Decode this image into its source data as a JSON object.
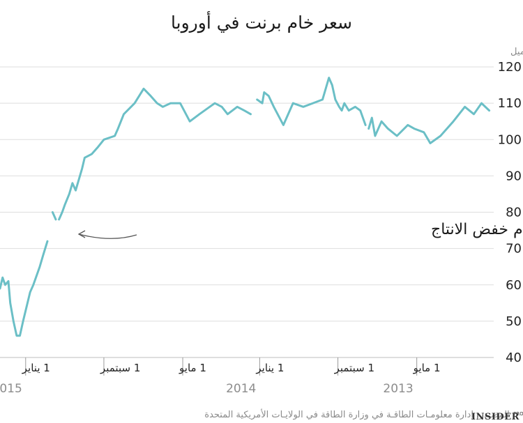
{
  "chart_data": {
    "type": "line",
    "title": "سعر خام برنت في أوروبا",
    "unit_label": "دولار/ برميل",
    "ylim": [
      40,
      120
    ],
    "yticks": [
      40,
      50,
      60,
      70,
      80,
      90,
      100,
      110,
      120
    ],
    "x_direction": "right-to-left",
    "xlim": [
      "2013-01-01",
      "2015-02-10"
    ],
    "xticks": [
      {
        "date": "2013-05-01",
        "label": "1 مايو"
      },
      {
        "date": "2013-09-01",
        "label": "1 سبتمبر"
      },
      {
        "date": "2014-01-01",
        "label": "1 يناير"
      },
      {
        "date": "2014-05-01",
        "label": "1 مايو"
      },
      {
        "date": "2014-09-01",
        "label": "1 سبتمبر"
      },
      {
        "date": "2015-01-01",
        "label": "1 يناير"
      }
    ],
    "year_labels": [
      {
        "date": "2013-05-01",
        "label": "2013"
      },
      {
        "date": "2014-01-01",
        "label": "2014"
      },
      {
        "date": "2015-01-01",
        "label": "2015"
      }
    ],
    "grid": true,
    "series": [
      {
        "segments": [
          [
            [
              "2013-01-08",
              108
            ],
            [
              "2013-01-20",
              110
            ],
            [
              "2013-02-01",
              107
            ],
            [
              "2013-02-15",
              109
            ],
            [
              "2013-03-05",
              105
            ],
            [
              "2013-03-25",
              101
            ],
            [
              "2013-04-10",
              99
            ],
            [
              "2013-04-20",
              102
            ],
            [
              "2013-05-05",
              103
            ],
            [
              "2013-05-15",
              104
            ],
            [
              "2013-06-01",
              101
            ],
            [
              "2013-06-15",
              103
            ],
            [
              "2013-06-25",
              105
            ],
            [
              "2013-07-05",
              101
            ],
            [
              "2013-07-10",
              106
            ],
            [
              "2013-07-15",
              103
            ]
          ],
          [
            [
              "2013-07-20",
              104
            ],
            [
              "2013-07-28",
              108
            ],
            [
              "2013-08-05",
              109
            ],
            [
              "2013-08-15",
              108
            ],
            [
              "2013-08-22",
              110
            ],
            [
              "2013-08-26",
              108
            ],
            [
              "2013-08-30",
              109
            ],
            [
              "2013-09-05",
              111
            ],
            [
              "2013-09-10",
              115
            ],
            [
              "2013-09-15",
              117
            ],
            [
              "2013-09-25",
              111
            ],
            [
              "2013-10-10",
              110
            ],
            [
              "2013-10-25",
              109
            ],
            [
              "2013-11-10",
              110
            ],
            [
              "2013-11-25",
              104
            ],
            [
              "2013-12-10",
              109
            ],
            [
              "2013-12-18",
              112
            ],
            [
              "2013-12-25",
              113
            ],
            [
              "2013-12-28",
              110
            ],
            [
              "2014-01-05",
              111
            ]
          ],
          [
            [
              "2014-01-15",
              107
            ],
            [
              "2014-01-25",
              108
            ],
            [
              "2014-02-05",
              109
            ],
            [
              "2014-02-20",
              107
            ],
            [
              "2014-03-01",
              109
            ],
            [
              "2014-03-12",
              110
            ],
            [
              "2014-03-20",
              109
            ],
            [
              "2014-04-05",
              107
            ],
            [
              "2014-04-20",
              105
            ],
            [
              "2014-05-05",
              110
            ],
            [
              "2014-05-20",
              110
            ],
            [
              "2014-06-01",
              109
            ],
            [
              "2014-06-10",
              110
            ],
            [
              "2014-06-20",
              112
            ],
            [
              "2014-07-01",
              114
            ],
            [
              "2014-07-15",
              110
            ],
            [
              "2014-08-01",
              107
            ],
            [
              "2014-08-10",
              103
            ],
            [
              "2014-08-15",
              101
            ],
            [
              "2014-09-01",
              100
            ],
            [
              "2014-09-10",
              98
            ],
            [
              "2014-09-20",
              96
            ],
            [
              "2014-10-01",
              95
            ],
            [
              "2014-10-05",
              92
            ],
            [
              "2014-10-15",
              86
            ],
            [
              "2014-10-20",
              88
            ],
            [
              "2014-10-25",
              85
            ],
            [
              "2014-11-01",
              82
            ],
            [
              "2014-11-05",
              80
            ],
            [
              "2014-11-10",
              78
            ]
          ],
          [
            [
              "2014-11-15",
              78
            ],
            [
              "2014-11-20",
              80
            ]
          ],
          [
            [
              "2014-11-28",
              72
            ],
            [
              "2014-12-05",
              68
            ],
            [
              "2014-12-10",
              65
            ],
            [
              "2014-12-20",
              60
            ],
            [
              "2014-12-25",
              58
            ],
            [
              "2015-01-05",
              50
            ],
            [
              "2015-01-10",
              46
            ],
            [
              "2015-01-15",
              46
            ],
            [
              "2015-01-20",
              50
            ],
            [
              "2015-01-25",
              55
            ],
            [
              "2015-01-28",
              61
            ],
            [
              "2015-02-02",
              60
            ],
            [
              "2015-02-06",
              62
            ],
            [
              "2015-02-10",
              59
            ]
          ]
        ]
      }
    ],
    "annotation": "\"أوبـك\" قد قررت بعـدم خفض الانتاج"
  },
  "source_text": "المصـدر: إدارة معلومـات الطاقـة في وزارة الطاقة في الولايـات الأمريكية المتحدة",
  "logo": {
    "main": "INSIDER",
    "sub": "PRO"
  }
}
